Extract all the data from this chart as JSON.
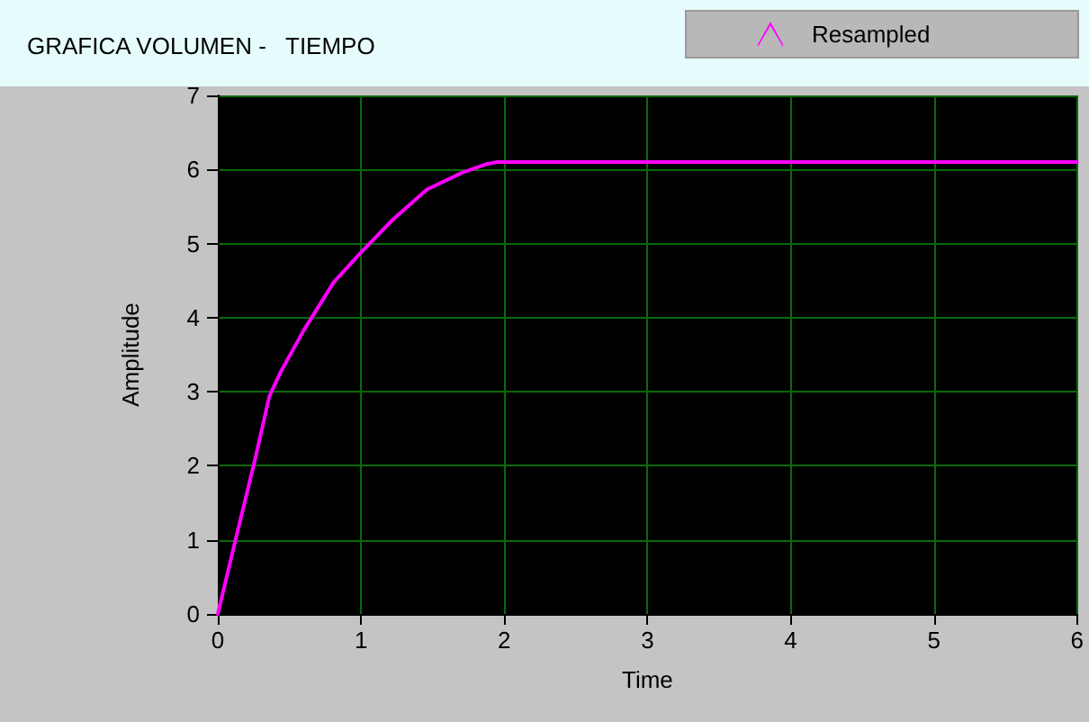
{
  "chart_data": {
    "type": "line",
    "title": "GRAFICA VOLUMEN -   TIEMPO",
    "xlabel": "Time",
    "ylabel": "Amplitude",
    "x": [
      0,
      0.135,
      0.257,
      0.36,
      0.44,
      0.6,
      0.81,
      1.0,
      1.22,
      1.46,
      1.71,
      1.87,
      1.95,
      6
    ],
    "series": [
      {
        "name": "Resampled",
        "color": "#ff00ff",
        "values": [
          0,
          1.09,
          2.06,
          2.94,
          3.27,
          3.83,
          4.48,
          4.88,
          5.32,
          5.73,
          5.96,
          6.07,
          6.1,
          6.1
        ]
      }
    ],
    "xlim": [
      0,
      6
    ],
    "xticks": [
      0,
      1,
      2,
      3,
      4,
      5,
      6
    ],
    "ylim": [
      0,
      7
    ],
    "yticks": [
      0,
      1,
      2,
      3,
      4,
      5,
      6,
      7
    ],
    "grid": true,
    "legend": "top right",
    "marker": "none",
    "line_style": "solid"
  }
}
